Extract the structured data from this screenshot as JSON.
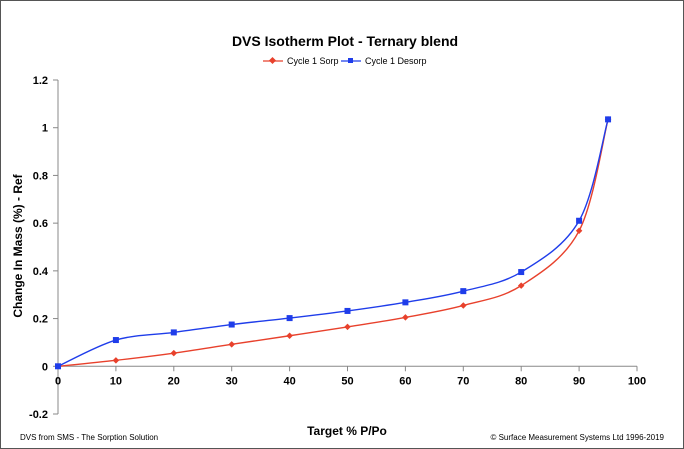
{
  "chart_data": {
    "type": "line",
    "title": "DVS Isotherm Plot - Ternary blend",
    "xlabel": "Target % P/Po",
    "ylabel": "Change In Mass (%) - Ref",
    "xlim": [
      0,
      100
    ],
    "ylim": [
      -0.2,
      1.2
    ],
    "xticks": [
      0,
      10,
      20,
      30,
      40,
      50,
      60,
      70,
      80,
      90,
      100
    ],
    "yticks": [
      -0.2,
      0,
      0.2,
      0.4,
      0.6,
      0.8,
      1,
      1.2
    ],
    "ytick_labels": [
      "-0.2",
      "0",
      "0.2",
      "0.4",
      "0.6",
      "0.8",
      "1",
      "1.2"
    ],
    "legend_position": "top-center",
    "grid": false,
    "series": [
      {
        "name": "Cycle 1 Sorp",
        "color": "#e8412c",
        "marker": "diamond",
        "x": [
          0,
          10,
          20,
          30,
          40,
          50,
          60,
          70,
          80,
          90,
          95
        ],
        "y": [
          0,
          0.025,
          0.055,
          0.092,
          0.128,
          0.165,
          0.205,
          0.255,
          0.338,
          0.568,
          1.035
        ]
      },
      {
        "name": "Cycle 1 Desorp",
        "color": "#1f3dea",
        "marker": "square",
        "x": [
          0,
          10,
          20,
          30,
          40,
          50,
          60,
          70,
          80,
          90,
          95
        ],
        "y": [
          0,
          0.11,
          0.142,
          0.175,
          0.202,
          0.232,
          0.268,
          0.315,
          0.395,
          0.61,
          1.035
        ]
      }
    ]
  },
  "footer": {
    "left": "DVS from SMS - The Sorption Solution",
    "right": "© Surface Measurement Systems Ltd 1996-2019"
  }
}
